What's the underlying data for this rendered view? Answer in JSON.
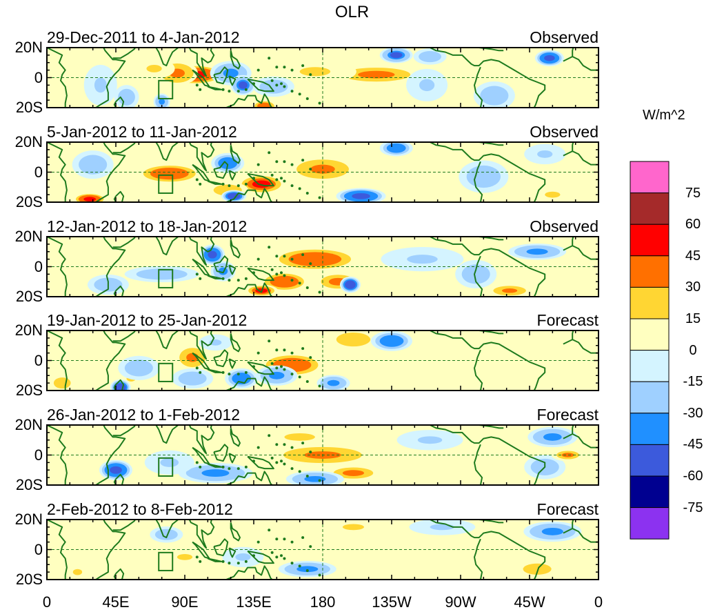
{
  "figure": {
    "title": "OLR"
  },
  "panels": [
    {
      "date_range": "29-Dec-2011 to 4-Jan-2012",
      "kind": "Observed",
      "anomalies": [
        {
          "lon": 97,
          "lat": 2,
          "value": 50,
          "sx": 14,
          "sy": 5
        },
        {
          "lon": 85,
          "lat": 3,
          "value": 35,
          "sx": 10,
          "sy": 6
        },
        {
          "lon": 70,
          "lat": 6,
          "value": 18,
          "sx": 10,
          "sy": 5
        },
        {
          "lon": 215,
          "lat": 2,
          "value": 30,
          "sx": 24,
          "sy": 5
        },
        {
          "lon": 175,
          "lat": 4,
          "value": 18,
          "sx": 20,
          "sy": 6
        },
        {
          "lon": 142,
          "lat": -19,
          "value": 40,
          "sx": 6,
          "sy": 3
        },
        {
          "lon": 35,
          "lat": -5,
          "value": -20,
          "sx": 8,
          "sy": 10
        },
        {
          "lon": 52,
          "lat": -13,
          "value": -25,
          "sx": 6,
          "sy": 6
        },
        {
          "lon": 120,
          "lat": 3,
          "value": -35,
          "sx": 10,
          "sy": 6
        },
        {
          "lon": 128,
          "lat": -5,
          "value": -50,
          "sx": 6,
          "sy": 5
        },
        {
          "lon": 148,
          "lat": -6,
          "value": -30,
          "sx": 10,
          "sy": 5
        },
        {
          "lon": 228,
          "lat": 15,
          "value": -50,
          "sx": 8,
          "sy": 4
        },
        {
          "lon": 250,
          "lat": 14,
          "value": -30,
          "sx": 8,
          "sy": 4
        },
        {
          "lon": 248,
          "lat": -5,
          "value": -20,
          "sx": 10,
          "sy": 8
        },
        {
          "lon": 292,
          "lat": -12,
          "value": -30,
          "sx": 10,
          "sy": 7
        },
        {
          "lon": 328,
          "lat": 13,
          "value": -55,
          "sx": 7,
          "sy": 4
        },
        {
          "lon": 75,
          "lat": -16,
          "value": -40,
          "sx": 4,
          "sy": 4
        }
      ]
    },
    {
      "date_range": "5-Jan-2012 to 11-Jan-2012",
      "kind": "Observed",
      "anomalies": [
        {
          "lon": 80,
          "lat": -1,
          "value": 40,
          "sx": 16,
          "sy": 5
        },
        {
          "lon": 180,
          "lat": 2,
          "value": 35,
          "sx": 16,
          "sy": 6
        },
        {
          "lon": 28,
          "lat": -18,
          "value": 55,
          "sx": 8,
          "sy": 3
        },
        {
          "lon": 140,
          "lat": -8,
          "value": 45,
          "sx": 12,
          "sy": 5
        },
        {
          "lon": 118,
          "lat": -12,
          "value": 25,
          "sx": 10,
          "sy": 4
        },
        {
          "lon": 30,
          "lat": 5,
          "value": -30,
          "sx": 10,
          "sy": 7
        },
        {
          "lon": 118,
          "lat": 6,
          "value": -45,
          "sx": 8,
          "sy": 5
        },
        {
          "lon": 122,
          "lat": -16,
          "value": -60,
          "sx": 6,
          "sy": 3
        },
        {
          "lon": 205,
          "lat": -16,
          "value": -55,
          "sx": 12,
          "sy": 4
        },
        {
          "lon": 228,
          "lat": 16,
          "value": -45,
          "sx": 8,
          "sy": 4
        },
        {
          "lon": 285,
          "lat": -3,
          "value": -25,
          "sx": 12,
          "sy": 8
        },
        {
          "lon": 325,
          "lat": 12,
          "value": -20,
          "sx": 10,
          "sy": 5
        },
        {
          "lon": 330,
          "lat": -15,
          "value": 20,
          "sx": 10,
          "sy": 4
        }
      ]
    },
    {
      "date_range": "12-Jan-2012 to 18-Jan-2012",
      "kind": "Observed",
      "anomalies": [
        {
          "lon": 175,
          "lat": 5,
          "value": 40,
          "sx": 22,
          "sy": 6
        },
        {
          "lon": 155,
          "lat": -10,
          "value": 40,
          "sx": 12,
          "sy": 5
        },
        {
          "lon": 140,
          "lat": -16,
          "value": 45,
          "sx": 8,
          "sy": 3
        },
        {
          "lon": 190,
          "lat": -10,
          "value": 30,
          "sx": 12,
          "sy": 5
        },
        {
          "lon": 302,
          "lat": -16,
          "value": 35,
          "sx": 10,
          "sy": 3
        },
        {
          "lon": 75,
          "lat": -5,
          "value": -30,
          "sx": 18,
          "sy": 4
        },
        {
          "lon": 108,
          "lat": 8,
          "value": -55,
          "sx": 6,
          "sy": 5
        },
        {
          "lon": 115,
          "lat": -3,
          "value": -35,
          "sx": 6,
          "sy": 5
        },
        {
          "lon": 40,
          "lat": -12,
          "value": -25,
          "sx": 10,
          "sy": 5
        },
        {
          "lon": 198,
          "lat": -12,
          "value": -60,
          "sx": 5,
          "sy": 4
        },
        {
          "lon": 320,
          "lat": 10,
          "value": -40,
          "sx": 14,
          "sy": 4
        },
        {
          "lon": 245,
          "lat": 5,
          "value": -20,
          "sx": 20,
          "sy": 6
        },
        {
          "lon": 280,
          "lat": -5,
          "value": -25,
          "sx": 10,
          "sy": 7
        }
      ]
    },
    {
      "date_range": "19-Jan-2012 to 25-Jan-2012",
      "kind": "Forecast",
      "anomalies": [
        {
          "lon": 160,
          "lat": -3,
          "value": 40,
          "sx": 16,
          "sy": 6
        },
        {
          "lon": 95,
          "lat": 2,
          "value": 35,
          "sx": 8,
          "sy": 6
        },
        {
          "lon": 200,
          "lat": 14,
          "value": 25,
          "sx": 12,
          "sy": 5
        },
        {
          "lon": 10,
          "lat": -15,
          "value": 25,
          "sx": 6,
          "sy": 4
        },
        {
          "lon": 55,
          "lat": -12,
          "value": 20,
          "sx": 6,
          "sy": 4
        },
        {
          "lon": 48,
          "lat": -18,
          "value": -60,
          "sx": 5,
          "sy": 4
        },
        {
          "lon": 60,
          "lat": -5,
          "value": -25,
          "sx": 10,
          "sy": 6
        },
        {
          "lon": 95,
          "lat": -12,
          "value": -30,
          "sx": 10,
          "sy": 5
        },
        {
          "lon": 127,
          "lat": -12,
          "value": -45,
          "sx": 8,
          "sy": 5
        },
        {
          "lon": 150,
          "lat": -10,
          "value": -35,
          "sx": 10,
          "sy": 5
        },
        {
          "lon": 187,
          "lat": -15,
          "value": -35,
          "sx": 8,
          "sy": 4
        },
        {
          "lon": 225,
          "lat": 13,
          "value": -45,
          "sx": 10,
          "sy": 5
        },
        {
          "lon": 110,
          "lat": 12,
          "value": -20,
          "sx": 8,
          "sy": 4
        }
      ]
    },
    {
      "date_range": "26-Jan-2012 to 1-Feb-2012",
      "kind": "Forecast",
      "anomalies": [
        {
          "lon": 180,
          "lat": 0,
          "value": 35,
          "sx": 24,
          "sy": 5
        },
        {
          "lon": 165,
          "lat": 12,
          "value": 20,
          "sx": 20,
          "sy": 5
        },
        {
          "lon": 200,
          "lat": -12,
          "value": 30,
          "sx": 14,
          "sy": 4
        },
        {
          "lon": 45,
          "lat": -10,
          "value": -55,
          "sx": 8,
          "sy": 5
        },
        {
          "lon": 110,
          "lat": -12,
          "value": -40,
          "sx": 18,
          "sy": 5
        },
        {
          "lon": 80,
          "lat": -5,
          "value": -20,
          "sx": 12,
          "sy": 6
        },
        {
          "lon": 175,
          "lat": -16,
          "value": -35,
          "sx": 14,
          "sy": 4
        },
        {
          "lon": 330,
          "lat": 12,
          "value": -40,
          "sx": 12,
          "sy": 5
        },
        {
          "lon": 325,
          "lat": -8,
          "value": -25,
          "sx": 10,
          "sy": 6
        },
        {
          "lon": 340,
          "lat": 0,
          "value": 30,
          "sx": 8,
          "sy": 3
        },
        {
          "lon": 250,
          "lat": 10,
          "value": -20,
          "sx": 16,
          "sy": 5
        }
      ]
    },
    {
      "date_range": "2-Feb-2012 to 8-Feb-2012",
      "kind": "Forecast",
      "anomalies": [
        {
          "lon": 78,
          "lat": 10,
          "value": -30,
          "sx": 8,
          "sy": 4
        },
        {
          "lon": 170,
          "lat": -13,
          "value": -35,
          "sx": 14,
          "sy": 4
        },
        {
          "lon": 128,
          "lat": -5,
          "value": -20,
          "sx": 10,
          "sy": 5
        },
        {
          "lon": 330,
          "lat": 12,
          "value": -35,
          "sx": 14,
          "sy": 5
        },
        {
          "lon": 258,
          "lat": 15,
          "value": -20,
          "sx": 16,
          "sy": 4
        },
        {
          "lon": 320,
          "lat": -13,
          "value": 25,
          "sx": 10,
          "sy": 4
        },
        {
          "lon": 200,
          "lat": 15,
          "value": 20,
          "sx": 14,
          "sy": 4
        },
        {
          "lon": 90,
          "lat": -5,
          "value": 15,
          "sx": 10,
          "sy": 4
        },
        {
          "lon": 20,
          "lat": -15,
          "value": 15,
          "sx": 6,
          "sy": 4
        }
      ]
    }
  ],
  "axes": {
    "lat_ticks": [
      "20N",
      "0",
      "20S"
    ],
    "lon_ticks": [
      "0",
      "45E",
      "90E",
      "135E",
      "180",
      "135W",
      "90W",
      "45W",
      "0"
    ],
    "lon_range": [
      0,
      360
    ],
    "lat_range": [
      -20,
      20
    ]
  },
  "colorbar": {
    "units": "W/m^2",
    "labels": [
      "75",
      "60",
      "45",
      "30",
      "15",
      "0",
      "-15",
      "-30",
      "-45",
      "-60",
      "-75"
    ],
    "levels": [
      75,
      60,
      45,
      30,
      15,
      0,
      -15,
      -30,
      -45,
      -60,
      -75
    ],
    "colors": [
      "#ff66cc",
      "#a52a2a",
      "#ff0000",
      "#ff7000",
      "#ffd633",
      "#ffffc0",
      "#d4f4ff",
      "#9fd0ff",
      "#2090ff",
      "#3c5adc",
      "#000090",
      "#8c32f0"
    ]
  }
}
